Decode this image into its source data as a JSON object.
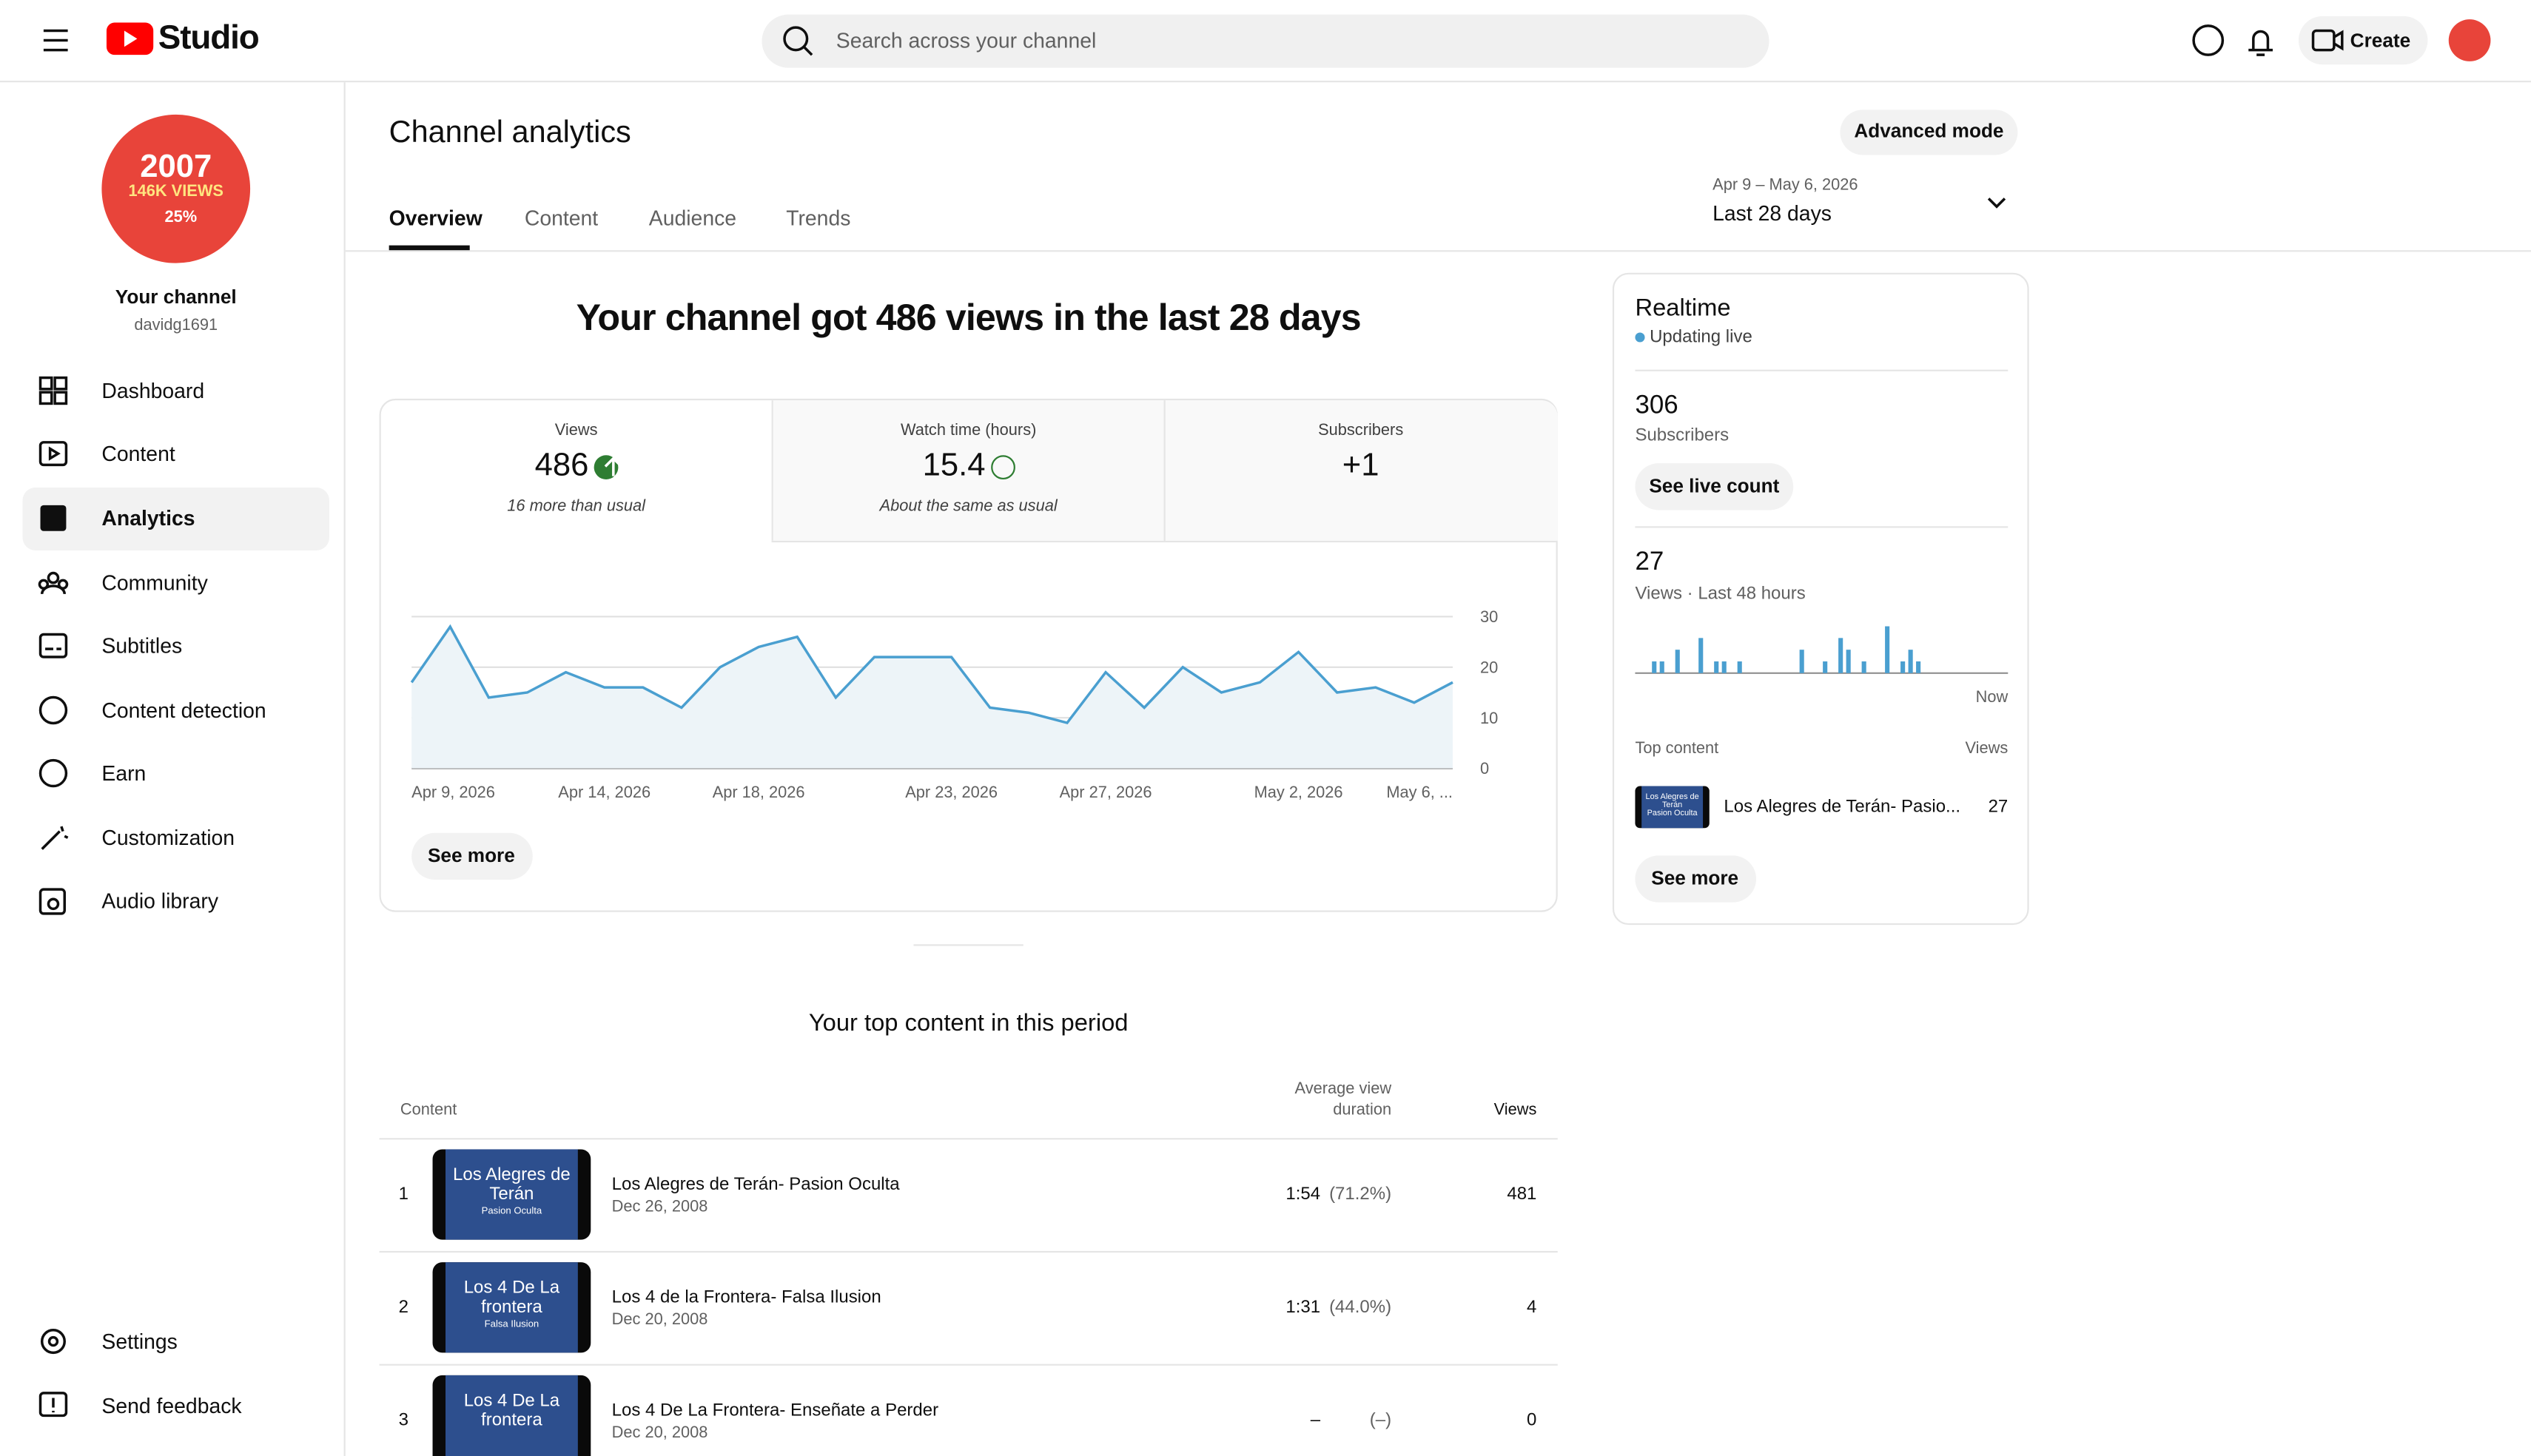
{
  "header": {
    "logo": "Studio",
    "search_placeholder": "Search across your channel",
    "create": "Create"
  },
  "sidebar": {
    "avatar": {
      "year": "2007",
      "views": "146K VIEWS",
      "percent": "25%"
    },
    "channel_title": "Your channel",
    "handle": "davidg1691",
    "nav": [
      "Dashboard",
      "Content",
      "Analytics",
      "Community",
      "Subtitles",
      "Content detection",
      "Earn",
      "Customization",
      "Audio library"
    ],
    "bottom_nav": [
      "Settings",
      "Send feedback"
    ]
  },
  "page": {
    "title": "Channel analytics",
    "advanced_mode": "Advanced mode",
    "tabs": [
      "Overview",
      "Content",
      "Audience",
      "Trends"
    ],
    "date_range": "Apr 9 – May 6, 2026",
    "period": "Last 28 days",
    "headline": "Your channel got 486 views in the last 28 days",
    "metrics": [
      {
        "label": "Views",
        "value": 486,
        "note": "16 more than usual"
      },
      {
        "label": "Watch time (hours)",
        "value": 15.4,
        "note": "About the same as usual"
      },
      {
        "label": "Subscribers",
        "value": "+1"
      }
    ],
    "see_more": "See more"
  },
  "top_content": {
    "title": "Your top content in this period",
    "columns": {
      "content": "Content",
      "avg_duration": [
        "Average view",
        "duration"
      ],
      "views": "Views"
    },
    "rows": [
      {
        "rank": 1,
        "thumb": [
          "Los Alegres de",
          "Terán",
          "Pasion Oculta"
        ],
        "title": "Los Alegres de Terán- Pasion Oculta",
        "date": "Dec 26, 2008",
        "duration": "1:54",
        "percent": "(71.2%)",
        "views": 481
      },
      {
        "rank": 2,
        "thumb": [
          "Los 4 De La",
          "frontera",
          "Falsa Ilusion"
        ],
        "title": "Los 4 de la Frontera- Falsa Ilusion",
        "date": "Dec 20, 2008",
        "duration": "1:31",
        "percent": "(44.0%)",
        "views": 4
      },
      {
        "rank": 3,
        "thumb": [
          "Los 4 De La",
          "frontera"
        ],
        "title": "Los 4 De La Frontera- Enseñate a Perder",
        "date": "Dec 20, 2008",
        "duration": "–",
        "percent": "(–)",
        "views": 0
      }
    ]
  },
  "realtime": {
    "title": "Realtime",
    "status": "Updating live",
    "subscribers": 306,
    "subscribers_label": "Subscribers",
    "see_live_count": "See live count",
    "views": 27,
    "views_label": "Views · Last 48 hours",
    "top_content_label": "Top content",
    "views_column": "Views",
    "top_item": {
      "thumb": [
        "Los Alegres de",
        "Terán",
        "Pasion Oculta"
      ],
      "title": "Los Alegres de Terán- Pasio...",
      "views": 27
    },
    "see_more": "See more"
  },
  "chart_data": [
    {
      "type": "line",
      "categories": [
        "Apr 9, 2026",
        null,
        null,
        null,
        null,
        "Apr 14, 2026",
        null,
        null,
        null,
        "Apr 18, 2026",
        null,
        null,
        null,
        null,
        "Apr 23, 2026",
        null,
        null,
        null,
        "Apr 27, 2026",
        null,
        null,
        null,
        null,
        "May 2, 2026",
        null,
        null,
        null,
        "May 6, ..."
      ],
      "values": [
        17,
        28,
        14,
        15,
        19,
        16,
        16,
        12,
        20,
        24,
        26,
        14,
        22,
        22,
        22,
        12,
        11,
        9,
        19,
        12,
        20,
        15,
        17,
        23,
        15,
        16,
        13,
        17
      ],
      "color": "#4a9fd0",
      "area_color": "#edf4f8",
      "ylim": [
        0,
        30
      ],
      "yticks": [
        0,
        10,
        20,
        30
      ],
      "grid": true
    },
    {
      "type": "bar",
      "xlabel": "Now",
      "color": "#4a9fd0",
      "values": [
        0,
        0,
        1,
        1,
        0,
        2,
        0,
        0,
        3,
        0,
        1,
        1,
        0,
        1,
        0,
        0,
        0,
        0,
        0,
        0,
        0,
        2,
        0,
        0,
        1,
        0,
        3,
        2,
        0,
        1,
        0,
        0,
        4,
        0,
        1,
        2,
        1,
        0,
        0,
        0,
        0,
        0,
        0,
        0,
        0,
        0,
        0,
        0
      ]
    }
  ]
}
